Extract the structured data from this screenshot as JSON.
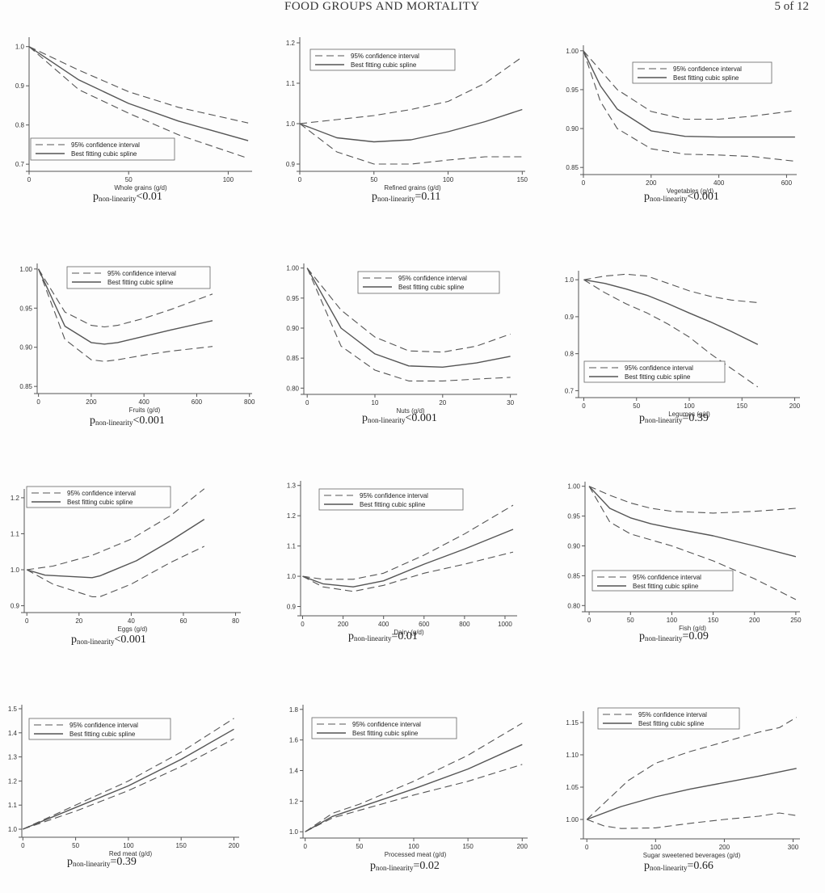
{
  "header": {
    "title": "FOOD GROUPS AND MORTALITY",
    "page": "5 of 12"
  },
  "legend": {
    "ci": "95% confidence interval",
    "spline": "Best fitting cubic spline"
  },
  "pvalue_prefix": "p",
  "pvalue_subscript": "non-linearity",
  "chart_data": [
    {
      "type": "line",
      "xlabel": "Whole grains (g/d)",
      "xlim": [
        0,
        112
      ],
      "ylim": [
        0.69,
        1.02
      ],
      "xticks": [
        0,
        50,
        100
      ],
      "yticks": [
        0.7,
        0.8,
        0.9,
        1.0
      ],
      "tick_labels": [
        "0.7",
        "0.8",
        "0.9",
        "1.0"
      ],
      "legend_position": "lower-left",
      "p_text": "<0.01",
      "series": [
        {
          "role": "upper",
          "x": [
            0,
            25,
            50,
            75,
            110
          ],
          "y": [
            1.0,
            0.94,
            0.885,
            0.845,
            0.805
          ]
        },
        {
          "role": "lower",
          "x": [
            0,
            25,
            50,
            75,
            110
          ],
          "y": [
            1.0,
            0.89,
            0.83,
            0.775,
            0.715
          ]
        },
        {
          "role": "estimate",
          "x": [
            0,
            25,
            50,
            75,
            110
          ],
          "y": [
            1.0,
            0.915,
            0.855,
            0.81,
            0.76
          ]
        }
      ]
    },
    {
      "type": "line",
      "xlabel": "Refined grains (g/d)",
      "xlim": [
        0,
        152
      ],
      "ylim": [
        0.89,
        1.21
      ],
      "xticks": [
        0,
        50,
        100,
        150
      ],
      "yticks": [
        0.9,
        1.0,
        1.1,
        1.2
      ],
      "tick_labels": [
        "0.9",
        "1.0",
        "1.1",
        "1.2"
      ],
      "legend_position": "top",
      "p_text": "=0.11",
      "series": [
        {
          "role": "upper",
          "x": [
            0,
            25,
            50,
            75,
            100,
            125,
            150
          ],
          "y": [
            1.0,
            1.01,
            1.02,
            1.035,
            1.055,
            1.1,
            1.165
          ]
        },
        {
          "role": "lower",
          "x": [
            0,
            25,
            50,
            75,
            100,
            125,
            150
          ],
          "y": [
            1.0,
            0.93,
            0.9,
            0.9,
            0.91,
            0.918,
            0.918
          ]
        },
        {
          "role": "estimate",
          "x": [
            0,
            25,
            50,
            75,
            100,
            125,
            150
          ],
          "y": [
            1.0,
            0.965,
            0.955,
            0.96,
            0.98,
            1.005,
            1.035
          ]
        }
      ]
    },
    {
      "type": "line",
      "xlabel": "Vegetables (g/d)",
      "xlim": [
        0,
        630
      ],
      "ylim": [
        0.845,
        1.005
      ],
      "xticks": [
        0,
        200,
        400,
        600
      ],
      "yticks": [
        0.85,
        0.9,
        0.95,
        1.0
      ],
      "tick_labels": [
        "0.85",
        "0.90",
        "0.95",
        "1.00"
      ],
      "legend_position": "top-right",
      "p_text": "<0.001",
      "series": [
        {
          "role": "upper",
          "x": [
            0,
            50,
            100,
            200,
            300,
            400,
            500,
            625
          ],
          "y": [
            1.0,
            0.975,
            0.95,
            0.922,
            0.912,
            0.912,
            0.916,
            0.923
          ]
        },
        {
          "role": "lower",
          "x": [
            0,
            50,
            100,
            200,
            300,
            400,
            500,
            625
          ],
          "y": [
            1.0,
            0.935,
            0.9,
            0.874,
            0.867,
            0.866,
            0.864,
            0.858
          ]
        },
        {
          "role": "estimate",
          "x": [
            0,
            50,
            100,
            200,
            300,
            400,
            500,
            625
          ],
          "y": [
            1.0,
            0.955,
            0.925,
            0.897,
            0.89,
            0.889,
            0.889,
            0.889
          ]
        }
      ]
    },
    {
      "type": "line",
      "xlabel": "Fruits (g/d)",
      "xlim": [
        -5,
        810
      ],
      "ylim": [
        0.845,
        1.005
      ],
      "xticks": [
        0,
        200,
        400,
        600,
        800
      ],
      "yticks": [
        0.85,
        0.9,
        0.95,
        1.0
      ],
      "tick_labels": [
        "0.85",
        "0.90",
        "0.95",
        "1.00"
      ],
      "legend_position": "top-right",
      "p_text": "<0.001",
      "series": [
        {
          "role": "upper",
          "x": [
            0,
            100,
            200,
            250,
            300,
            400,
            500,
            660
          ],
          "y": [
            1.0,
            0.945,
            0.928,
            0.926,
            0.928,
            0.937,
            0.948,
            0.968
          ]
        },
        {
          "role": "lower",
          "x": [
            0,
            100,
            200,
            250,
            300,
            400,
            500,
            660
          ],
          "y": [
            1.0,
            0.91,
            0.884,
            0.882,
            0.884,
            0.89,
            0.895,
            0.901
          ]
        },
        {
          "role": "estimate",
          "x": [
            0,
            100,
            200,
            250,
            300,
            400,
            500,
            660
          ],
          "y": [
            1.0,
            0.927,
            0.906,
            0.904,
            0.906,
            0.914,
            0.922,
            0.934
          ]
        }
      ]
    },
    {
      "type": "line",
      "xlabel": "Nuts (g/d)",
      "xlim": [
        -0.5,
        31
      ],
      "ylim": [
        0.795,
        1.005
      ],
      "xticks": [
        0,
        10,
        20,
        30
      ],
      "yticks": [
        0.8,
        0.85,
        0.9,
        0.95,
        1.0
      ],
      "tick_labels": [
        "0.80",
        "0.85",
        "0.90",
        "0.95",
        "1.00"
      ],
      "legend_position": "top-right",
      "p_text": "<0.001",
      "series": [
        {
          "role": "upper",
          "x": [
            0,
            5,
            10,
            15,
            20,
            25,
            30
          ],
          "y": [
            1.0,
            0.93,
            0.885,
            0.862,
            0.86,
            0.87,
            0.89
          ]
        },
        {
          "role": "lower",
          "x": [
            0,
            5,
            10,
            15,
            20,
            25,
            30
          ],
          "y": [
            1.0,
            0.87,
            0.83,
            0.812,
            0.812,
            0.815,
            0.818
          ]
        },
        {
          "role": "estimate",
          "x": [
            0,
            5,
            10,
            15,
            20,
            25,
            30
          ],
          "y": [
            1.0,
            0.9,
            0.857,
            0.837,
            0.835,
            0.842,
            0.853
          ]
        }
      ]
    },
    {
      "type": "line",
      "xlabel": "Legumes (g/d)",
      "xlim": [
        -5,
        205
      ],
      "ylim": [
        0.69,
        1.02
      ],
      "xticks": [
        0,
        50,
        100,
        150,
        200
      ],
      "yticks": [
        0.7,
        0.8,
        0.9,
        1.0
      ],
      "tick_labels": [
        "0.7",
        "0.8",
        "0.9",
        "1.0"
      ],
      "legend_position": "lower-left",
      "p_text": "=0.39",
      "series": [
        {
          "role": "upper",
          "x": [
            0,
            20,
            40,
            60,
            80,
            100,
            120,
            140,
            165
          ],
          "y": [
            1.0,
            1.01,
            1.015,
            1.01,
            0.99,
            0.97,
            0.955,
            0.945,
            0.938
          ]
        },
        {
          "role": "lower",
          "x": [
            0,
            20,
            40,
            60,
            80,
            100,
            120,
            140,
            165
          ],
          "y": [
            1.0,
            0.965,
            0.935,
            0.91,
            0.88,
            0.845,
            0.8,
            0.76,
            0.71
          ]
        },
        {
          "role": "estimate",
          "x": [
            0,
            20,
            40,
            60,
            80,
            100,
            120,
            140,
            165
          ],
          "y": [
            1.0,
            0.99,
            0.975,
            0.958,
            0.935,
            0.91,
            0.886,
            0.86,
            0.825
          ]
        }
      ]
    },
    {
      "type": "line",
      "xlabel": "Eggs (g/d)",
      "xlim": [
        -1,
        82
      ],
      "ylim": [
        0.89,
        1.22
      ],
      "xticks": [
        0,
        20,
        40,
        60,
        80
      ],
      "yticks": [
        0.9,
        1.0,
        1.1,
        1.2
      ],
      "tick_labels": [
        "0.9",
        "1.0",
        "1.1",
        "1.2"
      ],
      "legend_position": "top-left",
      "p_text": "<0.001",
      "series": [
        {
          "role": "upper",
          "x": [
            0,
            10,
            25,
            40,
            55,
            68
          ],
          "y": [
            1.0,
            1.01,
            1.04,
            1.085,
            1.15,
            1.225
          ]
        },
        {
          "role": "lower",
          "x": [
            0,
            10,
            25,
            28,
            40,
            55,
            68
          ],
          "y": [
            1.0,
            0.96,
            0.925,
            0.925,
            0.96,
            1.02,
            1.065
          ]
        },
        {
          "role": "estimate",
          "x": [
            0,
            7,
            25,
            28,
            42,
            55,
            68
          ],
          "y": [
            1.0,
            0.985,
            0.978,
            0.983,
            1.025,
            1.08,
            1.14
          ]
        }
      ]
    },
    {
      "type": "line",
      "xlabel": "Dairy (g/d)",
      "xlim": [
        -10,
        1060
      ],
      "ylim": [
        0.88,
        1.31
      ],
      "xticks": [
        0,
        200,
        400,
        600,
        800,
        1000
      ],
      "yticks": [
        0.9,
        1.0,
        1.1,
        1.2,
        1.3
      ],
      "tick_labels": [
        "0.9",
        "1.0",
        "1.1",
        "1.2",
        "1.3"
      ],
      "legend_position": "top-right",
      "p_text": "=0.01",
      "series": [
        {
          "role": "upper",
          "x": [
            0,
            100,
            250,
            400,
            600,
            800,
            1040
          ],
          "y": [
            1.0,
            0.99,
            0.99,
            1.01,
            1.07,
            1.14,
            1.235
          ]
        },
        {
          "role": "lower",
          "x": [
            0,
            100,
            250,
            400,
            600,
            800,
            1040
          ],
          "y": [
            1.0,
            0.965,
            0.95,
            0.97,
            1.01,
            1.04,
            1.08
          ]
        },
        {
          "role": "estimate",
          "x": [
            0,
            100,
            250,
            400,
            600,
            800,
            1040
          ],
          "y": [
            1.0,
            0.975,
            0.965,
            0.985,
            1.04,
            1.09,
            1.155
          ]
        }
      ]
    },
    {
      "type": "line",
      "xlabel": "Fish (g/d)",
      "xlim": [
        -5,
        255
      ],
      "ylim": [
        0.795,
        1.005
      ],
      "xticks": [
        0,
        50,
        100,
        150,
        200,
        250
      ],
      "yticks": [
        0.8,
        0.85,
        0.9,
        0.95,
        1.0
      ],
      "tick_labels": [
        "0.80",
        "0.85",
        "0.90",
        "0.95",
        "1.00"
      ],
      "legend_position": "lower-right",
      "p_text": "=0.09",
      "series": [
        {
          "role": "upper",
          "x": [
            0,
            25,
            50,
            75,
            100,
            150,
            200,
            250
          ],
          "y": [
            1.0,
            0.985,
            0.972,
            0.963,
            0.958,
            0.955,
            0.958,
            0.963
          ]
        },
        {
          "role": "lower",
          "x": [
            0,
            25,
            50,
            75,
            100,
            150,
            200,
            250
          ],
          "y": [
            1.0,
            0.94,
            0.92,
            0.91,
            0.9,
            0.875,
            0.845,
            0.81
          ]
        },
        {
          "role": "estimate",
          "x": [
            0,
            25,
            50,
            75,
            100,
            150,
            200,
            250
          ],
          "y": [
            1.0,
            0.963,
            0.947,
            0.937,
            0.93,
            0.917,
            0.9,
            0.882
          ]
        }
      ]
    },
    {
      "type": "line",
      "xlabel": "Red meat (g/d)",
      "xlim": [
        -1,
        205
      ],
      "ylim": [
        0.98,
        1.51
      ],
      "xticks": [
        0,
        50,
        100,
        150,
        200
      ],
      "yticks": [
        1.0,
        1.1,
        1.2,
        1.3,
        1.4,
        1.5
      ],
      "tick_labels": [
        "1.0",
        "1.1",
        "1.2",
        "1.3",
        "1.4",
        "1.5"
      ],
      "legend_position": "top-left",
      "p_text": "=0.39",
      "series": [
        {
          "role": "upper",
          "x": [
            0,
            50,
            100,
            150,
            200
          ],
          "y": [
            1.0,
            1.1,
            1.2,
            1.32,
            1.46
          ]
        },
        {
          "role": "lower",
          "x": [
            0,
            50,
            100,
            150,
            200
          ],
          "y": [
            1.0,
            1.075,
            1.16,
            1.26,
            1.375
          ]
        },
        {
          "role": "estimate",
          "x": [
            0,
            50,
            100,
            150,
            200
          ],
          "y": [
            1.0,
            1.09,
            1.18,
            1.29,
            1.415
          ]
        }
      ]
    },
    {
      "type": "line",
      "xlabel": "Processed meat (g/d)",
      "xlim": [
        -2,
        205
      ],
      "ylim": [
        0.98,
        1.82
      ],
      "xticks": [
        0,
        50,
        100,
        150,
        200
      ],
      "yticks": [
        1.0,
        1.2,
        1.4,
        1.6,
        1.8
      ],
      "tick_labels": [
        "1.0",
        "1.2",
        "1.4",
        "1.6",
        "1.8"
      ],
      "legend_position": "top-right",
      "p_text": "=0.02",
      "series": [
        {
          "role": "upper",
          "x": [
            0,
            25,
            50,
            100,
            150,
            200
          ],
          "y": [
            1.0,
            1.12,
            1.18,
            1.33,
            1.5,
            1.71
          ]
        },
        {
          "role": "lower",
          "x": [
            0,
            25,
            50,
            100,
            150,
            200
          ],
          "y": [
            1.0,
            1.09,
            1.14,
            1.24,
            1.33,
            1.44
          ]
        },
        {
          "role": "estimate",
          "x": [
            0,
            25,
            50,
            100,
            150,
            200
          ],
          "y": [
            1.0,
            1.1,
            1.16,
            1.28,
            1.41,
            1.57
          ]
        }
      ]
    },
    {
      "type": "line",
      "xlabel": "Sugar sweetened beverages (g/d)",
      "xlim": [
        -5,
        310
      ],
      "ylim": [
        0.975,
        1.165
      ],
      "xticks": [
        0,
        100,
        200,
        300
      ],
      "yticks": [
        1.0,
        1.05,
        1.1,
        1.15
      ],
      "tick_labels": [
        "1.00",
        "1.05",
        "1.10",
        "1.15"
      ],
      "legend_position": "top-right",
      "p_text": "=0.66",
      "series": [
        {
          "role": "upper",
          "x": [
            0,
            30,
            60,
            100,
            150,
            200,
            250,
            280,
            305
          ],
          "y": [
            1.0,
            1.03,
            1.06,
            1.087,
            1.105,
            1.12,
            1.135,
            1.142,
            1.158
          ]
        },
        {
          "role": "lower",
          "x": [
            0,
            25,
            50,
            100,
            150,
            200,
            250,
            280,
            305
          ],
          "y": [
            1.0,
            0.99,
            0.986,
            0.987,
            0.994,
            1.0,
            1.005,
            1.01,
            1.006
          ]
        },
        {
          "role": "estimate",
          "x": [
            0,
            50,
            100,
            150,
            200,
            250,
            305
          ],
          "y": [
            1.0,
            1.02,
            1.035,
            1.047,
            1.057,
            1.067,
            1.079
          ]
        }
      ]
    }
  ]
}
